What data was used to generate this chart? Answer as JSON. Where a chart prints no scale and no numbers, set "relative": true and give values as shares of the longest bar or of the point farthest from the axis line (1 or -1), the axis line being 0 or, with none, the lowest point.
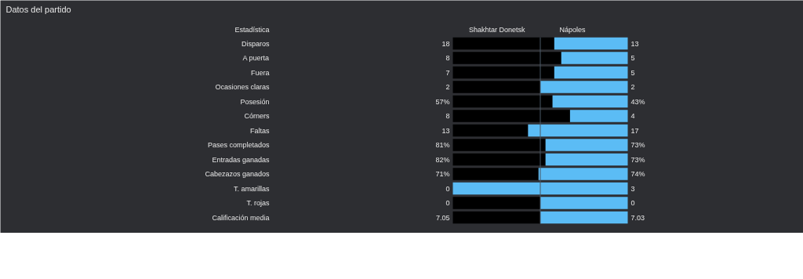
{
  "chart_data": {
    "type": "bar",
    "orientation": "horizontal",
    "stacked": true,
    "relative": true,
    "title": "Datos del partido",
    "ylabel": "Estadística",
    "categories": [
      "Disparos",
      "A puerta",
      "Fuera",
      "Ocasiones claras",
      "Posesión",
      "Córners",
      "Faltas",
      "Pases completados",
      "Entradas ganadas",
      "Cabezazos ganados",
      "T. amarillas",
      "T. rojas",
      "Calificación media"
    ],
    "series": [
      {
        "name": "Shakhtar Donetsk",
        "color": "#000000",
        "values": [
          0.58,
          0.62,
          0.58,
          0.5,
          0.57,
          0.67,
          0.43,
          0.53,
          0.53,
          0.49,
          0,
          0.5,
          0.5
        ]
      },
      {
        "name": "Nápoles",
        "color": "#5bbcf5",
        "values": [
          0.42,
          0.38,
          0.42,
          0.5,
          0.43,
          0.33,
          0.57,
          0.47,
          0.47,
          0.51,
          1,
          0.5,
          0.5
        ]
      }
    ],
    "annotations": [
      "18",
      "13",
      "8",
      "5",
      "7",
      "5",
      "2",
      "2",
      "57%",
      "43%",
      "8",
      "4",
      "13",
      "17",
      "81%",
      "73%",
      "82%",
      "73%",
      "71%",
      "74%",
      "0",
      "3",
      "0",
      "0",
      "7.05",
      "7.03"
    ],
    "ref_lines": [
      {
        "axis": "x",
        "value": 0.5,
        "color": "#4a5866"
      }
    ],
    "legend": false,
    "grid": false
  }
}
